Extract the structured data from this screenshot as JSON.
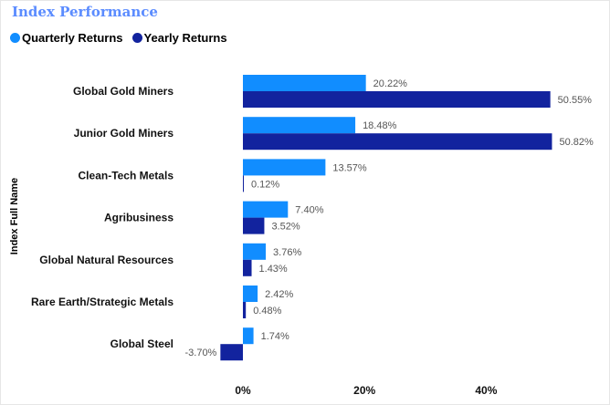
{
  "chart_data": {
    "type": "bar",
    "title": "Index Performance",
    "ylabel": "Index Full Name",
    "xlabel": "",
    "categories": [
      "Global Gold Miners",
      "Junior Gold Miners",
      "Clean-Tech Metals",
      "Agribusiness",
      "Global Natural Resources",
      "Rare Earth/Strategic Metals",
      "Global Steel"
    ],
    "series": [
      {
        "name": "Quarterly Returns",
        "color": "#118dff",
        "values": [
          20.22,
          18.48,
          13.57,
          7.4,
          3.76,
          2.42,
          1.74
        ]
      },
      {
        "name": "Yearly Returns",
        "color": "#12239e",
        "values": [
          50.55,
          50.82,
          0.12,
          3.52,
          1.43,
          0.48,
          -3.7
        ]
      }
    ],
    "xticks": [
      "0%",
      "20%",
      "40%"
    ],
    "xtick_values": [
      0,
      20,
      40
    ],
    "legend": "top-left",
    "grid": false
  }
}
